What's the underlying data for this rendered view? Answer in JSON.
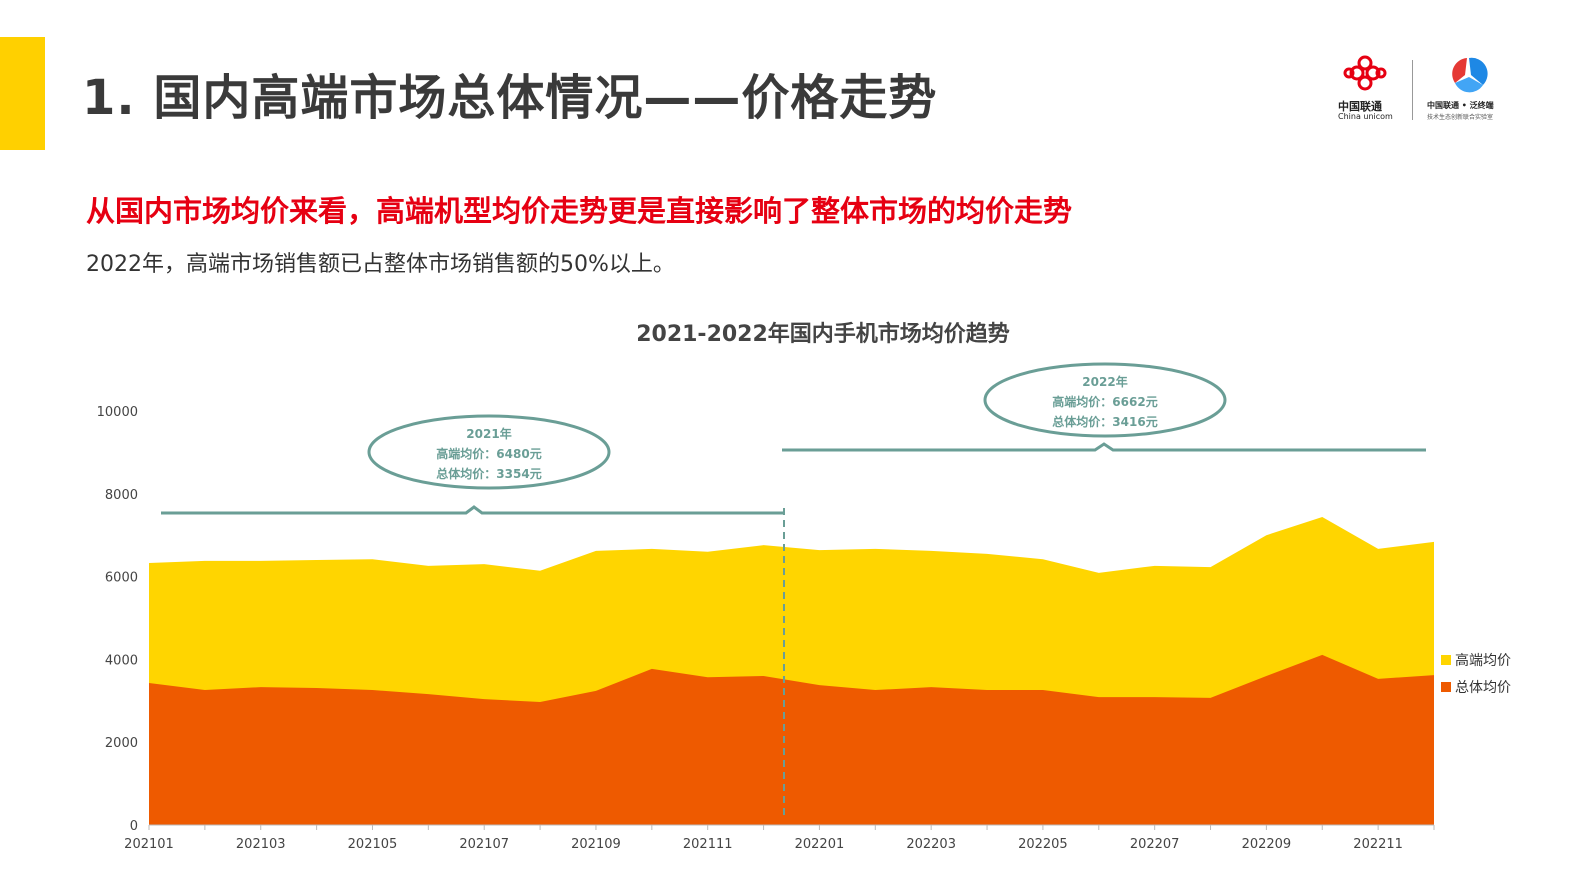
{
  "slide": {
    "title": "1. 国内高端市场总体情况——价格走势",
    "headline": "从国内市场均价来看，高端机型均价走势更是直接影响了整体市场的均价走势",
    "subtext": "2022年，高端市场销售额已占整体市场销售额的50%以上。",
    "logo": {
      "brand": "中国联通",
      "brand_en": "China unicom",
      "partner": "中国联通 • 泛终端",
      "partner_sub": "技术生态创新联合实验室"
    }
  },
  "chart_data": {
    "type": "area",
    "title": "2021-2022年国内手机市场均价趋势",
    "xlabel": "",
    "ylabel": "",
    "ylim": [
      0,
      10000
    ],
    "yticks": [
      0,
      2000,
      4000,
      6000,
      8000,
      10000
    ],
    "x": [
      "202101",
      "202102",
      "202103",
      "202104",
      "202105",
      "202106",
      "202107",
      "202108",
      "202109",
      "202110",
      "202111",
      "202112",
      "202201",
      "202202",
      "202203",
      "202204",
      "202205",
      "202206",
      "202207",
      "202208",
      "202209",
      "202210",
      "202211",
      "202212"
    ],
    "xtick_labels": [
      "202101",
      "202103",
      "202105",
      "202107",
      "202109",
      "202111",
      "202201",
      "202203",
      "202205",
      "202207",
      "202209",
      "202211"
    ],
    "series": [
      {
        "name": "高端均价",
        "color": "#FFD500",
        "values": [
          6330,
          6380,
          6380,
          6400,
          6420,
          6260,
          6300,
          6140,
          6620,
          6670,
          6600,
          6760,
          6640,
          6670,
          6620,
          6550,
          6420,
          6090,
          6260,
          6230,
          7000,
          7440,
          6670,
          6840
        ]
      },
      {
        "name": "总体均价",
        "color": "#EE5A00",
        "values": [
          3430,
          3260,
          3330,
          3310,
          3260,
          3160,
          3040,
          2970,
          3240,
          3770,
          3570,
          3600,
          3380,
          3260,
          3330,
          3260,
          3260,
          3090,
          3090,
          3070,
          3600,
          4110,
          3530,
          3620
        ]
      }
    ],
    "legend": "right",
    "annotations": [
      {
        "year": "2021年",
        "high": "高端均价：6480元",
        "overall": "总体均价：3354元"
      },
      {
        "year": "2022年",
        "high": "高端均价：6662元",
        "overall": "总体均价：3416元"
      }
    ],
    "annotation_color": "#6A9E96"
  }
}
